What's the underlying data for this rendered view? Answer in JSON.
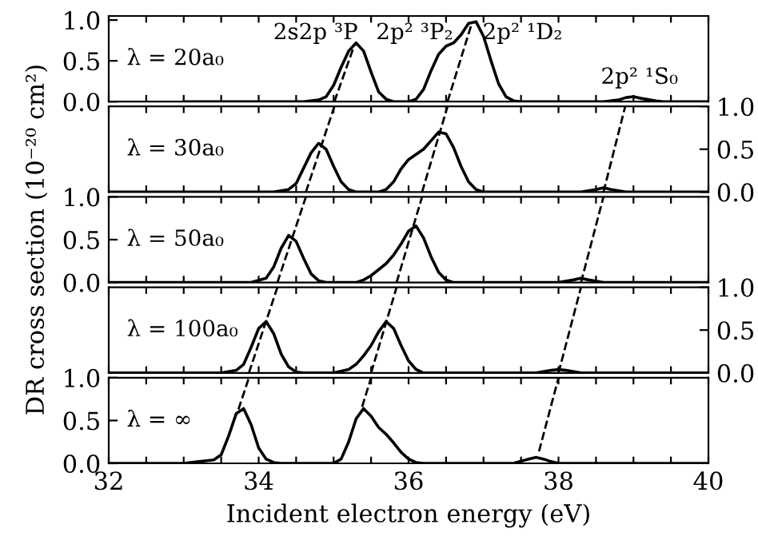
{
  "chart_data": [
    {
      "type": "line",
      "xlim": [
        32,
        40
      ],
      "xticks": [
        32,
        {
          "value": 32.5,
          "label": null
        },
        {
          "value": 33,
          "label": null
        },
        {
          "value": 33.5,
          "label": null
        },
        34,
        {
          "value": 34.5,
          "label": null
        },
        {
          "value": 35,
          "label": null
        },
        {
          "value": 35.5,
          "label": null
        },
        36,
        {
          "value": 36.5,
          "label": null
        },
        {
          "value": 37,
          "label": null
        },
        {
          "value": 37.5,
          "label": null
        },
        38,
        {
          "value": 38.5,
          "label": null
        },
        {
          "value": 39,
          "label": null
        },
        {
          "value": 39.5,
          "label": null
        },
        40
      ],
      "ylim": [
        0,
        1.05
      ],
      "yticks": [
        {
          "value": 0,
          "label": "0.0"
        },
        {
          "value": 0.5,
          "label": "0.5"
        },
        {
          "value": 1,
          "label": "1.0"
        }
      ],
      "tick_labels": "y",
      "annotations": [
        "λ = 20a₀",
        "2s2p ³P",
        "2p² ³P₂",
        "2p² ¹D₂",
        "2p² ¹S₀"
      ],
      "series": [
        {
          "color": "#000000",
          "line_style": "solid",
          "x": [
            33.0,
            34.6,
            34.8,
            34.9,
            35.0,
            35.1,
            35.2,
            35.3,
            35.4,
            35.5,
            35.6,
            35.7,
            35.8,
            36.0,
            36.1,
            36.2,
            36.3,
            36.4,
            36.5,
            36.6,
            36.7,
            36.8,
            36.9,
            37.0,
            37.1,
            37.2,
            37.3,
            37.4,
            37.5,
            38.6,
            38.8,
            38.9,
            39.0,
            39.1,
            39.3,
            39.4,
            40
          ],
          "values": [
            0,
            0,
            0.02,
            0.06,
            0.2,
            0.42,
            0.62,
            0.72,
            0.62,
            0.36,
            0.12,
            0.03,
            0,
            0,
            0.03,
            0.15,
            0.38,
            0.58,
            0.68,
            0.72,
            0.82,
            0.96,
            0.98,
            0.8,
            0.5,
            0.22,
            0.06,
            0.01,
            0,
            0,
            0.02,
            0.05,
            0.06,
            0.04,
            0.01,
            0,
            0
          ]
        },
        {
          "color": "#000000",
          "line_style": "dashed",
          "x": [
            35.01,
            35.28
          ],
          "values": [
            0,
            0.7
          ]
        },
        {
          "color": "#000000",
          "line_style": "dashed",
          "x": [
            36.52,
            36.84
          ],
          "values": [
            0,
            0.95
          ]
        }
      ]
    },
    {
      "type": "line",
      "xlim": [
        32,
        40
      ],
      "xticks": [
        32,
        {
          "value": 32.5,
          "label": null
        },
        {
          "value": 33,
          "label": null
        },
        {
          "value": 33.5,
          "label": null
        },
        34,
        {
          "value": 34.5,
          "label": null
        },
        {
          "value": 35,
          "label": null
        },
        {
          "value": 35.5,
          "label": null
        },
        36,
        {
          "value": 36.5,
          "label": null
        },
        {
          "value": 37,
          "label": null
        },
        {
          "value": 37.5,
          "label": null
        },
        38,
        {
          "value": 38.5,
          "label": null
        },
        {
          "value": 39,
          "label": null
        },
        {
          "value": 39.5,
          "label": null
        },
        40
      ],
      "y2lim": [
        0,
        1
      ],
      "y2ticks": [
        {
          "value": 0,
          "label": "0.0"
        },
        {
          "value": 0.5,
          "label": "0.5"
        },
        {
          "value": 1,
          "label": "1.0"
        }
      ],
      "tick_labels": "y",
      "annotations": [
        "λ = 30a₀"
      ],
      "series": [
        {
          "axis": "y2",
          "color": "#000000",
          "line_style": "solid",
          "x": [
            32,
            34.2,
            34.4,
            34.5,
            34.6,
            34.7,
            34.8,
            34.9,
            35.0,
            35.1,
            35.2,
            35.3,
            35.6,
            35.7,
            35.8,
            35.9,
            36.0,
            36.1,
            36.2,
            36.3,
            36.4,
            36.5,
            36.6,
            36.7,
            36.8,
            36.9,
            37.0,
            38.3,
            38.5,
            38.6,
            38.7,
            38.9,
            40
          ],
          "values": [
            0,
            0,
            0.03,
            0.1,
            0.28,
            0.46,
            0.57,
            0.5,
            0.3,
            0.12,
            0.03,
            0,
            0,
            0.03,
            0.12,
            0.27,
            0.38,
            0.44,
            0.5,
            0.6,
            0.7,
            0.68,
            0.52,
            0.3,
            0.12,
            0.03,
            0,
            0,
            0.03,
            0.05,
            0.03,
            0,
            0
          ]
        },
        {
          "axis": "y2",
          "color": "#000000",
          "line_style": "dashed",
          "x": [
            34.63,
            35.01
          ],
          "values": [
            0,
            1
          ]
        },
        {
          "axis": "y2",
          "color": "#000000",
          "line_style": "dashed",
          "x": [
            36.18,
            36.52
          ],
          "values": [
            0,
            1
          ]
        },
        {
          "axis": "y2",
          "color": "#000000",
          "line_style": "dashed",
          "x": [
            38.6,
            38.89
          ],
          "values": [
            0,
            1
          ]
        }
      ]
    },
    {
      "type": "line",
      "xlim": [
        32,
        40
      ],
      "xticks": [
        32,
        {
          "value": 32.5,
          "label": null
        },
        {
          "value": 33,
          "label": null
        },
        {
          "value": 33.5,
          "label": null
        },
        34,
        {
          "value": 34.5,
          "label": null
        },
        {
          "value": 35,
          "label": null
        },
        {
          "value": 35.5,
          "label": null
        },
        36,
        {
          "value": 36.5,
          "label": null
        },
        {
          "value": 37,
          "label": null
        },
        {
          "value": 37.5,
          "label": null
        },
        38,
        {
          "value": 38.5,
          "label": null
        },
        {
          "value": 39,
          "label": null
        },
        {
          "value": 39.5,
          "label": null
        },
        40
      ],
      "ylim": [
        0,
        1
      ],
      "yticks": [
        {
          "value": 0,
          "label": "0.0"
        },
        {
          "value": 0.5,
          "label": "0.5"
        },
        {
          "value": 1,
          "label": "1.0"
        }
      ],
      "tick_labels": "y",
      "ylabel": "DR cross section (10⁻²⁰ cm²)",
      "annotations": [
        "λ = 50a₀"
      ],
      "series": [
        {
          "color": "#000000",
          "line_style": "solid",
          "x": [
            32,
            33.9,
            34.1,
            34.2,
            34.3,
            34.4,
            34.5,
            34.6,
            34.7,
            34.8,
            34.9,
            35.3,
            35.4,
            35.5,
            35.6,
            35.7,
            35.8,
            35.9,
            36.0,
            36.1,
            36.2,
            36.3,
            36.4,
            36.5,
            36.6,
            38.0,
            38.2,
            38.3,
            38.4,
            38.6,
            40
          ],
          "values": [
            0,
            0,
            0.05,
            0.18,
            0.4,
            0.55,
            0.48,
            0.28,
            0.1,
            0.02,
            0,
            0,
            0.03,
            0.08,
            0.15,
            0.22,
            0.32,
            0.45,
            0.6,
            0.66,
            0.52,
            0.3,
            0.12,
            0.03,
            0,
            0,
            0.03,
            0.05,
            0.03,
            0,
            0
          ]
        },
        {
          "color": "#000000",
          "line_style": "dashed",
          "x": [
            34.25,
            34.63
          ],
          "values": [
            0,
            1
          ]
        },
        {
          "color": "#000000",
          "line_style": "dashed",
          "x": [
            35.84,
            36.18
          ],
          "values": [
            0,
            1
          ]
        },
        {
          "color": "#000000",
          "line_style": "dashed",
          "x": [
            38.3,
            38.6
          ],
          "values": [
            0,
            1
          ]
        }
      ]
    },
    {
      "type": "line",
      "xlim": [
        32,
        40
      ],
      "xticks": [
        32,
        {
          "value": 32.5,
          "label": null
        },
        {
          "value": 33,
          "label": null
        },
        {
          "value": 33.5,
          "label": null
        },
        34,
        {
          "value": 34.5,
          "label": null
        },
        {
          "value": 35,
          "label": null
        },
        {
          "value": 35.5,
          "label": null
        },
        36,
        {
          "value": 36.5,
          "label": null
        },
        {
          "value": 37,
          "label": null
        },
        {
          "value": 37.5,
          "label": null
        },
        38,
        {
          "value": 38.5,
          "label": null
        },
        {
          "value": 39,
          "label": null
        },
        {
          "value": 39.5,
          "label": null
        },
        40
      ],
      "y2lim": [
        0,
        1
      ],
      "y2ticks": [
        {
          "value": 0,
          "label": "0.0"
        },
        {
          "value": 0.5,
          "label": "0.5"
        },
        {
          "value": 1,
          "label": "1.0"
        }
      ],
      "tick_labels": "y",
      "annotations": [
        "λ = 100a₀"
      ],
      "series": [
        {
          "axis": "y2",
          "color": "#000000",
          "line_style": "solid",
          "x": [
            32,
            33.5,
            33.7,
            33.8,
            33.9,
            34.0,
            34.1,
            34.2,
            34.3,
            34.4,
            34.5,
            34.6,
            35.0,
            35.2,
            35.3,
            35.4,
            35.5,
            35.6,
            35.7,
            35.8,
            35.9,
            36.0,
            36.1,
            36.2,
            37.7,
            37.9,
            38.0,
            38.1,
            38.3,
            40
          ],
          "values": [
            0,
            0,
            0.03,
            0.1,
            0.3,
            0.52,
            0.6,
            0.46,
            0.22,
            0.07,
            0.01,
            0,
            0,
            0.04,
            0.1,
            0.2,
            0.32,
            0.48,
            0.6,
            0.52,
            0.32,
            0.14,
            0.04,
            0,
            0,
            0.03,
            0.04,
            0.03,
            0,
            0
          ]
        },
        {
          "axis": "y2",
          "color": "#000000",
          "line_style": "dashed",
          "x": [
            33.87,
            34.25
          ],
          "values": [
            0,
            1
          ]
        },
        {
          "axis": "y2",
          "color": "#000000",
          "line_style": "dashed",
          "x": [
            35.5,
            35.84
          ],
          "values": [
            0,
            1
          ]
        },
        {
          "axis": "y2",
          "color": "#000000",
          "line_style": "dashed",
          "x": [
            38.0,
            38.3
          ],
          "values": [
            0,
            1
          ]
        }
      ]
    },
    {
      "type": "line",
      "xlim": [
        32,
        40
      ],
      "xticks": [
        32,
        {
          "value": 32.5,
          "label": null
        },
        {
          "value": 33,
          "label": null
        },
        {
          "value": 33.5,
          "label": null
        },
        34,
        {
          "value": 34.5,
          "label": null
        },
        {
          "value": 35,
          "label": null
        },
        {
          "value": 35.5,
          "label": null
        },
        36,
        {
          "value": 36.5,
          "label": null
        },
        {
          "value": 37,
          "label": null
        },
        {
          "value": 37.5,
          "label": null
        },
        38,
        {
          "value": 38.5,
          "label": null
        },
        {
          "value": 39,
          "label": null
        },
        {
          "value": 39.5,
          "label": null
        },
        40
      ],
      "ylim": [
        0,
        1
      ],
      "yticks": [
        {
          "value": 0,
          "label": "0.0"
        },
        {
          "value": 0.5,
          "label": "0.5"
        },
        {
          "value": 1,
          "label": "1.0"
        }
      ],
      "xlabel": "Incident electron energy (eV)",
      "annotations": [
        "λ = ∞"
      ],
      "series": [
        {
          "color": "#000000",
          "line_style": "solid",
          "x": [
            32,
            33.0,
            33.2,
            33.4,
            33.5,
            33.6,
            33.7,
            33.8,
            33.9,
            34.0,
            34.1,
            34.2,
            34.3,
            35.0,
            35.1,
            35.2,
            35.3,
            35.4,
            35.5,
            35.6,
            35.7,
            35.8,
            35.9,
            36.0,
            36.1,
            36.2,
            37.4,
            37.6,
            37.7,
            37.8,
            37.9,
            38.0,
            40
          ],
          "values": [
            0,
            0,
            0.02,
            0.04,
            0.1,
            0.32,
            0.58,
            0.64,
            0.45,
            0.18,
            0.05,
            0.01,
            0,
            0,
            0.05,
            0.25,
            0.52,
            0.64,
            0.55,
            0.42,
            0.34,
            0.24,
            0.13,
            0.05,
            0.01,
            0,
            0,
            0.05,
            0.07,
            0.05,
            0.02,
            0,
            0
          ]
        },
        {
          "color": "#000000",
          "line_style": "dashed",
          "x": [
            33.73,
            33.87
          ],
          "values": [
            0.63,
            1
          ]
        },
        {
          "color": "#000000",
          "line_style": "dashed",
          "x": [
            35.38,
            35.5
          ],
          "values": [
            0.66,
            1
          ]
        },
        {
          "color": "#000000",
          "line_style": "dashed",
          "x": [
            37.74,
            38.0
          ],
          "values": [
            0.14,
            1
          ]
        }
      ]
    }
  ]
}
